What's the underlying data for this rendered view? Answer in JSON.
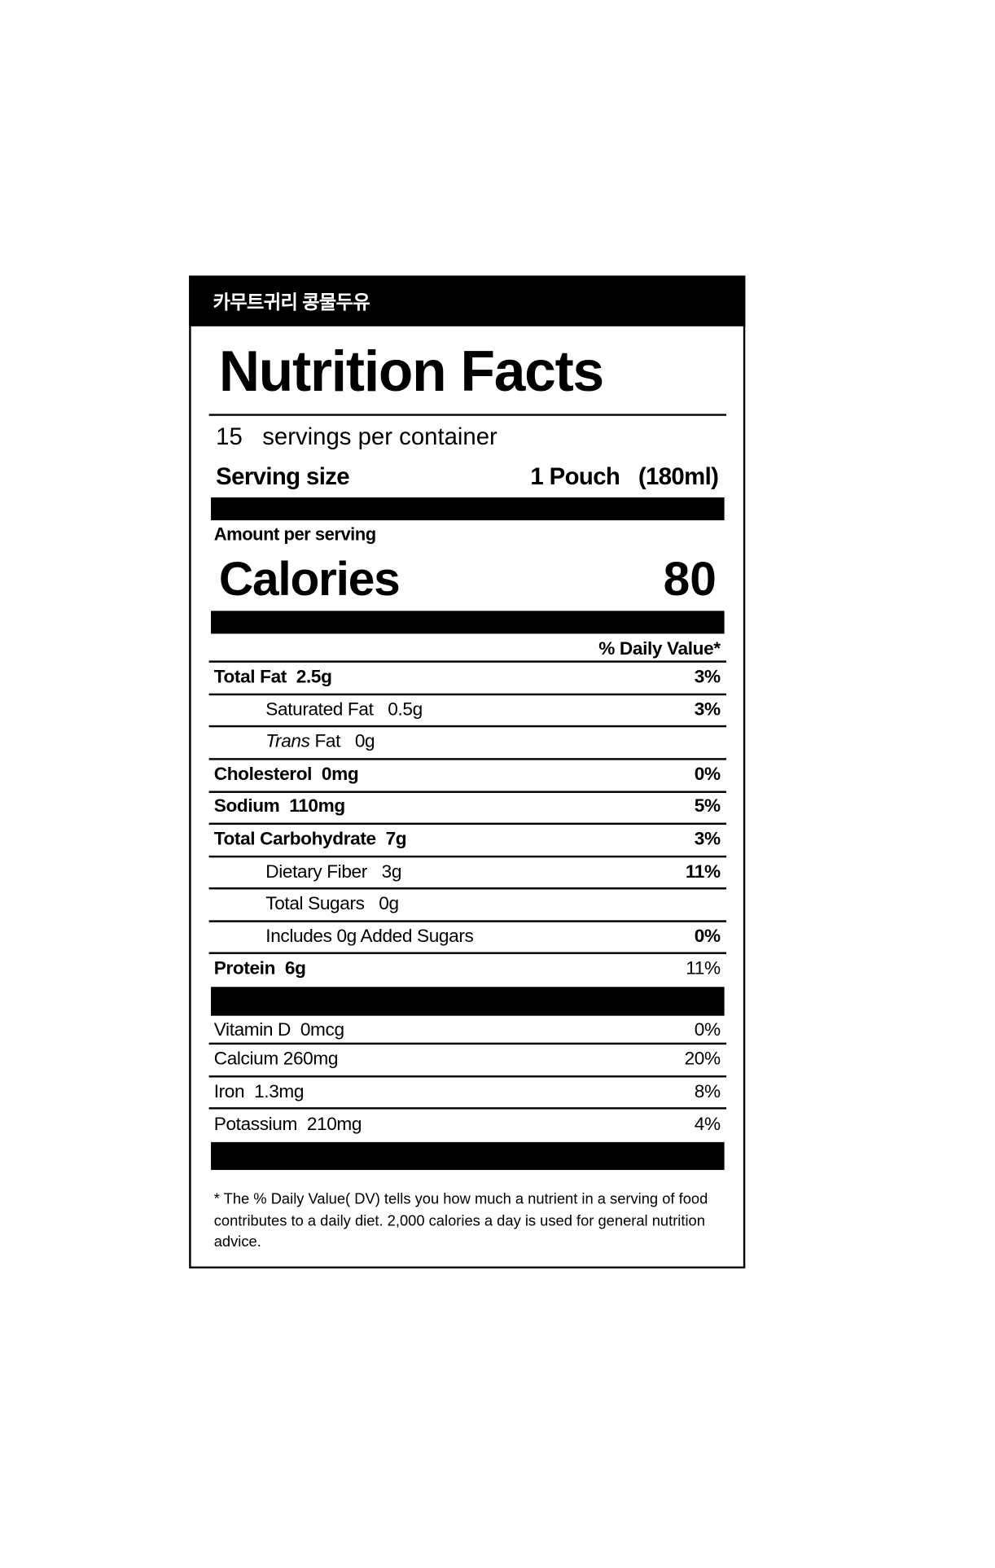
{
  "product_name": "카무트귀리 콩물두유",
  "title": "Nutrition Facts",
  "servings": {
    "count": "15",
    "label": "servings per container"
  },
  "serving_size": {
    "label": "Serving size",
    "amount": "1 Pouch",
    "volume": "(180ml)"
  },
  "amount_per_serving": "Amount per serving",
  "calories": {
    "label": "Calories",
    "value": "80"
  },
  "dv_header": "% Daily Value*",
  "nutrients": [
    {
      "name": "Total Fat",
      "amount": "2.5g",
      "dv": "3%"
    },
    {
      "name": "Saturated Fat",
      "amount": "0.5g",
      "dv": "3%"
    },
    {
      "name": "Trans",
      "name_rest": "Fat",
      "amount": "0g",
      "dv": ""
    },
    {
      "name": "Cholesterol",
      "amount": "0mg",
      "dv": "0%"
    },
    {
      "name": "Sodium",
      "amount": "110mg",
      "dv": "5%"
    },
    {
      "name": "Total Carbohydrate",
      "amount": "7g",
      "dv": "3%"
    },
    {
      "name": "Dietary Fiber",
      "amount": "3g",
      "dv": "11%"
    },
    {
      "name": "Total Sugars",
      "amount": "0g",
      "dv": ""
    },
    {
      "name": "Includes 0g Added Sugars",
      "amount": "",
      "dv": "0%"
    },
    {
      "name": "Protein",
      "amount": "6g",
      "dv": "11%"
    }
  ],
  "vitamins": [
    {
      "name": "Vitamin D",
      "amount": "0mcg",
      "dv": "0%"
    },
    {
      "name": "Calcium",
      "amount": "260mg",
      "dv": "20%"
    },
    {
      "name": "Iron",
      "amount": "1.3mg",
      "dv": "8%"
    },
    {
      "name": "Potassium",
      "amount": "210mg",
      "dv": "4%"
    }
  ],
  "footnote": "* The % Daily Value( DV) tells you how much a nutrient in a serving of food contributes to a daily diet. 2,000 calories a day is used for general nutrition advice."
}
